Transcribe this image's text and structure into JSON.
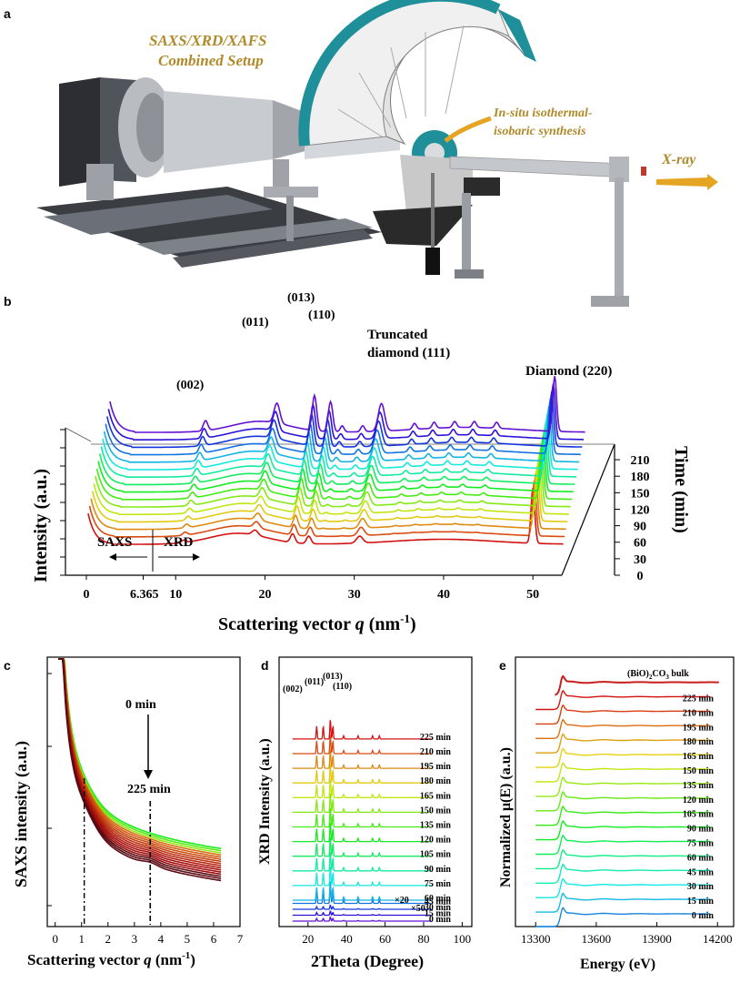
{
  "panel_a": {
    "letter": "a",
    "title_line1": "SAXS/XRD/XAFS",
    "title_line2": "Combined Setup",
    "synth_line1": "In-situ isothermal-",
    "synth_line2": "isobaric synthesis",
    "xray_label": "X-ray",
    "colors": {
      "gold": "#b08a2a",
      "teal": "#1f8f9a",
      "arrow": "#e5a422"
    }
  },
  "panel_b": {
    "letter": "b",
    "peaks": [
      "(002)",
      "(011)",
      "(013)",
      "(110)"
    ],
    "truncated_line1": "Truncated",
    "truncated_line2": "diamond (111)",
    "diamond_220": "Diamond (220)",
    "saxs_label": "SAXS",
    "xrd_label": "XRD",
    "split_value": "6.365",
    "y_label": "Intensity (a.u.)",
    "z_label": "Time (min)",
    "x_label_main": "Scattering vector ",
    "x_label_q": "q",
    "x_label_unit": " (nm",
    "x_label_exp": "-1",
    "x_label_end": ")"
  },
  "panel_c": {
    "letter": "c",
    "y_label": "SAXS intensity (a.u.)",
    "x_label_main": "Scattering vector ",
    "x_label_q": "q",
    "x_label_unit": " (nm",
    "x_label_exp": "-1",
    "x_label_end": ")",
    "annot_start": "0 min",
    "annot_end": "225 min"
  },
  "panel_d": {
    "letter": "d",
    "y_label": "XRD Intensity (a.u.)",
    "x_label": "2Theta (Degree)",
    "peaks": [
      "(002)",
      "(011)",
      "(013)",
      "(110)"
    ],
    "mult_20": "×20",
    "mult_50": "×50"
  },
  "panel_e": {
    "letter": "e",
    "y_label": "Normalized μ(E) (a.u.)",
    "x_label": "Energy (eV)",
    "ref_label_pre": "(BiO)",
    "ref_label_sub": "2",
    "ref_label_mid": "CO",
    "ref_label_sub2": "3",
    "ref_label_post": " bulk"
  },
  "chart_data": [
    {
      "id": "b",
      "type": "line",
      "title": "",
      "xlabel": "Scattering vector q (nm-1)",
      "ylabel": "Intensity (a.u.)",
      "zlabel": "Time (min)",
      "x_ticks": [
        0,
        10,
        20,
        30,
        40,
        50
      ],
      "x_range": [
        -1,
        56
      ],
      "extra_x_tick": 6.365,
      "time_ticks": [
        0,
        30,
        60,
        90,
        120,
        150,
        180,
        210
      ],
      "time_series_min": [
        0,
        15,
        30,
        45,
        60,
        75,
        90,
        105,
        120,
        135,
        150,
        165,
        180,
        195,
        210,
        225
      ],
      "peaks": [
        {
          "label": "(002)",
          "q": 10.9
        },
        {
          "label": "(011)",
          "q": 18.9
        },
        {
          "label": "(013)",
          "q": 23.1
        },
        {
          "label": "(110)",
          "q": 24.9
        },
        {
          "label": "Truncated diamond (111)",
          "q": 30.6
        },
        {
          "label": "Diamond (220)",
          "q": 50.0
        }
      ]
    },
    {
      "id": "c",
      "type": "line",
      "xlabel": "Scattering vector q (nm-1)",
      "ylabel": "SAXS intensity (a.u.)",
      "x_ticks": [
        0,
        1,
        2,
        3,
        4,
        5,
        6,
        7
      ],
      "x_range": [
        -0.3,
        7
      ],
      "marker_lines_q": [
        1.1,
        3.6
      ],
      "series_count": 16
    },
    {
      "id": "d",
      "type": "line",
      "xlabel": "2Theta (Degree)",
      "ylabel": "XRD Intensity (a.u.)",
      "x_ticks": [
        20,
        40,
        60,
        80,
        100
      ],
      "x_range": [
        5,
        105
      ],
      "series_labels": [
        "0 min",
        "15 min",
        "30 min",
        "45 min",
        "60 min",
        "75 min",
        "90 min",
        "105 min",
        "120 min",
        "135 min",
        "150 min",
        "165 min",
        "180 min",
        "195 min",
        "210 min",
        "225 min"
      ],
      "peaks_2theta": [
        {
          "label": "(002)",
          "x": 24.5
        },
        {
          "label": "(011)",
          "x": 27.9
        },
        {
          "label": "(013)",
          "x": 31.6
        },
        {
          "label": "(110)",
          "x": 32.9
        }
      ]
    },
    {
      "id": "e",
      "type": "line",
      "xlabel": "Energy (eV)",
      "ylabel": "Normalized μ(E) (a.u.)",
      "x_ticks": [
        13300,
        13600,
        13900,
        14200
      ],
      "x_range": [
        13200,
        14280
      ],
      "edge_eV": 13420,
      "series_labels": [
        "0 min",
        "15 min",
        "30 min",
        "45 min",
        "60 min",
        "75 min",
        "90 min",
        "105 min",
        "120 min",
        "135 min",
        "150 min",
        "165 min",
        "180 min",
        "195 min",
        "210 min",
        "225 min",
        "(BiO)2CO3 bulk"
      ]
    }
  ]
}
